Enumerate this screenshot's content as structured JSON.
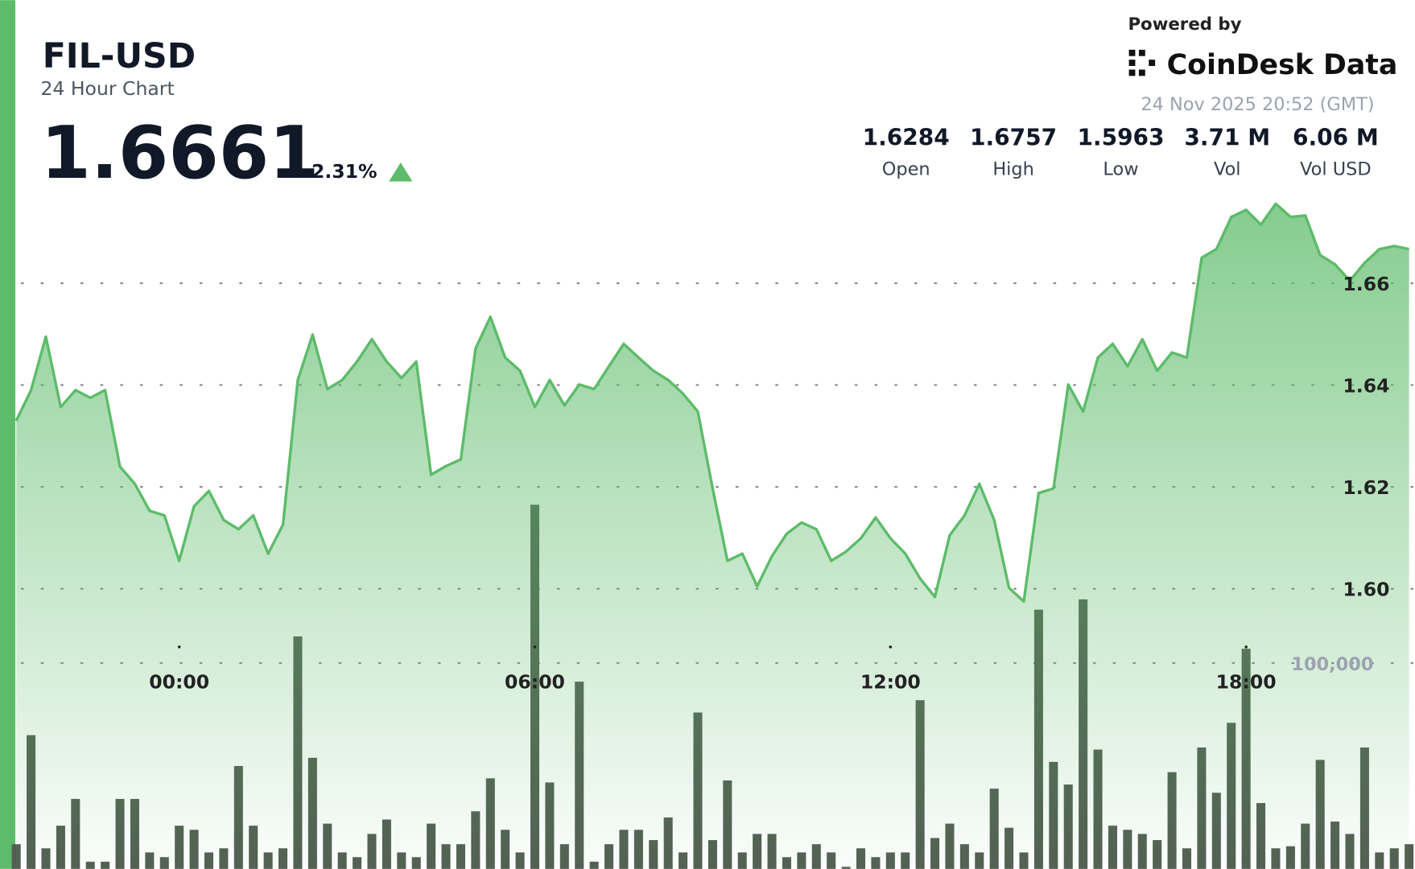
{
  "header": {
    "symbol": "FIL-USD",
    "subtitle": "24 Hour Chart",
    "price": "1.6661",
    "change": "2.31%",
    "powered_by": "Powered by",
    "brand": "CoinDesk Data",
    "timestamp": "24 Nov 2025 20:52 (GMT)",
    "stats": [
      {
        "value": "1.6284",
        "label": "Open"
      },
      {
        "value": "1.6757",
        "label": "High"
      },
      {
        "value": "1.5963",
        "label": "Low"
      },
      {
        "value": "3.71 M",
        "label": "Vol"
      },
      {
        "value": "6.06 M",
        "label": "Vol USD"
      }
    ]
  },
  "chart_data": {
    "type": "area",
    "x": [
      -2.75,
      -2.5,
      -2.25,
      -2,
      -1.75,
      -1.5,
      -1.25,
      -1,
      -0.75,
      -0.5,
      -0.25,
      0,
      0.25,
      0.5,
      0.75,
      1,
      1.25,
      1.5,
      1.75,
      2,
      2.25,
      2.5,
      2.75,
      3,
      3.25,
      3.5,
      3.75,
      4,
      4.25,
      4.5,
      4.75,
      5,
      5.25,
      5.5,
      5.75,
      6,
      6.25,
      6.5,
      6.75,
      7,
      7.25,
      7.5,
      7.75,
      8,
      8.25,
      8.5,
      8.75,
      9,
      9.25,
      9.5,
      9.75,
      10,
      10.25,
      10.5,
      10.75,
      11,
      11.25,
      11.5,
      11.75,
      12,
      12.25,
      12.5,
      12.75,
      13,
      13.25,
      13.5,
      13.75,
      14,
      14.25,
      14.5,
      14.75,
      15,
      15.25,
      15.5,
      15.75,
      16,
      16.25,
      16.5,
      16.75,
      17,
      17.25,
      17.5,
      17.75,
      18,
      18.25,
      18.5,
      18.75,
      19,
      19.25,
      19.5,
      19.75,
      20,
      20.25,
      20.5,
      20.75
    ],
    "series": [
      {
        "color": "#5dbb6a",
        "values": [
          1.633,
          1.639,
          1.6495,
          1.6357,
          1.639,
          1.6375,
          1.639,
          1.624,
          1.6206,
          1.6153,
          1.6144,
          1.6055,
          1.6162,
          1.6192,
          1.6135,
          1.6117,
          1.6144,
          1.6069,
          1.6126,
          1.641,
          1.6499,
          1.6392,
          1.641,
          1.6446,
          1.649,
          1.6446,
          1.6414,
          1.6446,
          1.6224,
          1.6241,
          1.6254,
          1.6472,
          1.6534,
          1.6454,
          1.6428,
          1.6357,
          1.641,
          1.636,
          1.6401,
          1.6392,
          1.6437,
          1.6481,
          1.6454,
          1.6428,
          1.641,
          1.6383,
          1.6348,
          1.6197,
          1.6055,
          1.6069,
          1.6005,
          1.6064,
          1.6108,
          1.613,
          1.6117,
          1.6055,
          1.6073,
          1.6099,
          1.614,
          1.6099,
          1.6069,
          1.602,
          1.5984,
          1.6105,
          1.6144,
          1.6206,
          1.6135,
          1.6002,
          1.5975,
          1.6188,
          1.6197,
          1.6401,
          1.6348,
          1.6454,
          1.6481,
          1.6437,
          1.649,
          1.6428,
          1.6464,
          1.6454,
          1.665,
          1.6667,
          1.673,
          1.6744,
          1.6715,
          1.6756,
          1.673,
          1.6733,
          1.6655,
          1.6637,
          1.6605,
          1.664,
          1.6667,
          1.6673,
          1.6667
        ]
      },
      {
        "color": "#535e53",
        "axis": "y2",
        "values": [
          12000,
          65000,
          10000,
          21000,
          34000,
          3500,
          3500,
          34000,
          34000,
          8000,
          5700,
          21000,
          19000,
          8000,
          10000,
          50000,
          21000,
          8000,
          10000,
          113000,
          54000,
          22000,
          8000,
          5700,
          17000,
          24000,
          8000,
          5700,
          22000,
          12000,
          12000,
          28000,
          44000,
          19000,
          8000,
          177000,
          42000,
          12000,
          91000,
          3500,
          12000,
          19000,
          19000,
          14000,
          25000,
          8000,
          76000,
          14000,
          43000,
          8000,
          17000,
          17000,
          5700,
          8000,
          12000,
          8000,
          1000,
          10000,
          5700,
          8000,
          8000,
          82000,
          15000,
          22000,
          12000,
          8000,
          39000,
          20000,
          8000,
          126000,
          52000,
          41000,
          131000,
          58000,
          21000,
          19000,
          17000,
          14000,
          47000,
          10000,
          59000,
          37000,
          71000,
          107000,
          32000,
          10000,
          11000,
          22000,
          53000,
          23000,
          17000,
          59000,
          8000,
          10000,
          12000
        ]
      }
    ],
    "xlim": [
      -2.75,
      20.85
    ],
    "xticks": [
      {
        "value": 0,
        "label": "00:00"
      },
      {
        "value": 6,
        "label": "06:00"
      },
      {
        "value": 12,
        "label": "12:00"
      },
      {
        "value": 18,
        "label": "18:00"
      }
    ],
    "ylim": [
      1.545,
      1.6775
    ],
    "yticks": [
      {
        "value": 1.6,
        "label": "1.60"
      },
      1.62,
      1.64,
      1.66
    ],
    "y2lim": [
      0,
      328000
    ],
    "y2ticks": [
      {
        "value": 100000,
        "label": "100,000"
      }
    ],
    "grid": true
  }
}
